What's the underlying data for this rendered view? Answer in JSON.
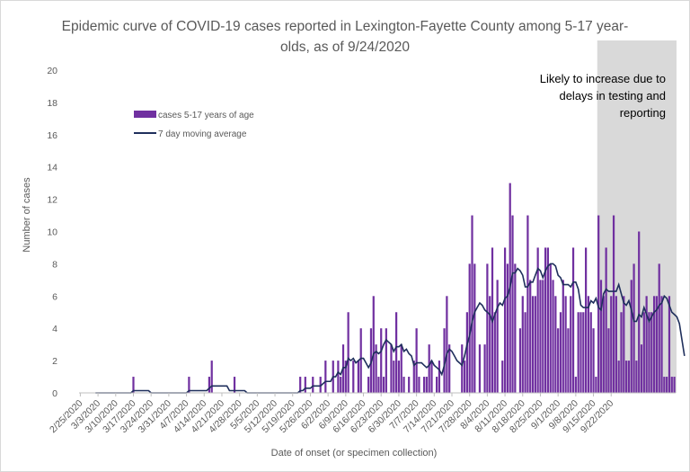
{
  "chart_data": {
    "type": "bar",
    "title": "Epidemic curve of COVID-19 cases reported in Lexington-Fayette County among 5-17 year-\nolds, as of 9/24/2020",
    "xlabel": "Date of onset (or specimen collection)",
    "ylabel": "Number of cases",
    "ylim": [
      0,
      20
    ],
    "yticks": [
      "0",
      "2",
      "4",
      "6",
      "8",
      "10",
      "12",
      "14",
      "16",
      "18",
      "20"
    ],
    "xticks": [
      "2/25/2020",
      "3/3/2020",
      "3/10/2020",
      "3/17/2020",
      "3/24/2020",
      "3/31/2020",
      "4/7/2020",
      "4/14/2020",
      "4/21/2020",
      "4/28/2020",
      "5/5/2020",
      "5/12/2020",
      "5/19/2020",
      "5/26/2020",
      "6/2/2020",
      "6/9/2020",
      "6/16/2020",
      "6/23/2020",
      "6/30/2020",
      "7/7/2020",
      "7/14/2020",
      "7/21/2020",
      "7/28/2020",
      "8/4/2020",
      "8/11/2020",
      "8/18/2020",
      "8/25/2020",
      "9/1/2020",
      "9/8/2020",
      "9/15/2020",
      "9/22/2020"
    ],
    "start_date": "2/25/2020",
    "grid": false,
    "legend_position": "top-left",
    "series": [
      {
        "name": "cases 5-17 years of age",
        "kind": "bar",
        "color": "#7030a0",
        "values": [
          0,
          0,
          0,
          0,
          0,
          0,
          0,
          0,
          0,
          0,
          0,
          0,
          0,
          0,
          0,
          0,
          0,
          0,
          0,
          0,
          0,
          1,
          0,
          0,
          0,
          0,
          0,
          0,
          0,
          0,
          0,
          0,
          0,
          0,
          0,
          0,
          0,
          0,
          0,
          0,
          0,
          0,
          0,
          1,
          0,
          0,
          0,
          0,
          0,
          0,
          0,
          1,
          2,
          0,
          0,
          0,
          0,
          0,
          0,
          0,
          0,
          1,
          0,
          0,
          0,
          0,
          0,
          0,
          0,
          0,
          0,
          0,
          0,
          0,
          0,
          0,
          0,
          0,
          0,
          0,
          0,
          0,
          0,
          0,
          0,
          0,
          0,
          1,
          0,
          1,
          0,
          0,
          1,
          0,
          0,
          1,
          0,
          2,
          0,
          0,
          2,
          0,
          2,
          1,
          3,
          2,
          5,
          0,
          2,
          0,
          2,
          4,
          0,
          0,
          1,
          4,
          6,
          3,
          1,
          4,
          1,
          4,
          0,
          3,
          2,
          5,
          2,
          3,
          1,
          0,
          1,
          0,
          2,
          4,
          1,
          0,
          1,
          1,
          3,
          2,
          0,
          1,
          2,
          0,
          4,
          6,
          3,
          0,
          0,
          0,
          0,
          3,
          2,
          5,
          8,
          11,
          8,
          0,
          3,
          0,
          3,
          8,
          6,
          9,
          5,
          7,
          0,
          2,
          9,
          8,
          13,
          11,
          8,
          0,
          4,
          6,
          5,
          11,
          7,
          6,
          6,
          9,
          7,
          7,
          9,
          9,
          8,
          7,
          6,
          4,
          5,
          7,
          6,
          4,
          6,
          9,
          1,
          5,
          5,
          5,
          9,
          6,
          5,
          4,
          1,
          11,
          7,
          6,
          9,
          4,
          6,
          11,
          6,
          2,
          5,
          6,
          2,
          2,
          7,
          8,
          2,
          10,
          3,
          5,
          6,
          5,
          5,
          6,
          6,
          8,
          6,
          1,
          1,
          6,
          1,
          1
        ]
      },
      {
        "name": "7 day moving average",
        "kind": "line",
        "color": "#1f2f5c",
        "values": [
          null,
          null,
          null,
          null,
          null,
          null,
          0,
          0,
          0,
          0,
          0,
          0,
          0,
          0,
          0,
          0,
          0,
          0,
          0,
          0,
          0,
          0.14,
          0.14,
          0.14,
          0.14,
          0.14,
          0.14,
          0.14,
          0,
          0,
          0,
          0,
          0,
          0,
          0,
          0,
          0,
          0,
          0,
          0,
          0,
          0,
          0,
          0.14,
          0.14,
          0.14,
          0.14,
          0.14,
          0.14,
          0.14,
          0.14,
          0.29,
          0.43,
          0.43,
          0.43,
          0.43,
          0.43,
          0.43,
          0.43,
          0.14,
          0.14,
          0.14,
          0.14,
          0.14,
          0.14,
          0.14,
          0,
          0,
          0,
          0,
          0,
          0,
          0,
          0,
          0,
          0,
          0,
          0,
          0,
          0,
          0,
          0,
          0,
          0,
          0,
          0,
          0,
          0.14,
          0.14,
          0.29,
          0.29,
          0.29,
          0.43,
          0.43,
          0.43,
          0.43,
          0.57,
          0.71,
          0.71,
          0.71,
          1.0,
          1.0,
          1.29,
          1.14,
          1.57,
          1.57,
          2.14,
          2.0,
          2.14,
          1.86,
          2.0,
          2.14,
          2.14,
          1.86,
          1.57,
          1.86,
          2.43,
          2.57,
          2.43,
          2.57,
          3.0,
          3.29,
          3.14,
          3.0,
          2.57,
          2.86,
          2.86,
          3.0,
          2.57,
          2.71,
          2.43,
          2.29,
          1.71,
          1.86,
          1.86,
          1.86,
          1.71,
          1.57,
          1.71,
          2.0,
          1.71,
          1.57,
          1.43,
          1.14,
          1.71,
          2.43,
          2.71,
          2.57,
          2.29,
          2.0,
          1.86,
          1.71,
          2.29,
          3.0,
          3.57,
          4.43,
          5.0,
          5.29,
          5.57,
          5.43,
          5.14,
          5.0,
          4.86,
          4.43,
          4.86,
          5.29,
          5.57,
          5.43,
          5.86,
          6.0,
          6.57,
          7.43,
          7.43,
          7.71,
          7.57,
          7.29,
          6.57,
          6.57,
          6.86,
          6.86,
          7.29,
          7.71,
          7.57,
          7.14,
          7.57,
          7.86,
          8.0,
          8.0,
          7.86,
          7.29,
          7.14,
          6.71,
          6.71,
          6.71,
          6.57,
          6.86,
          6.86,
          6.43,
          5.43,
          5.29,
          5.29,
          5.29,
          5.71,
          5.57,
          5.86,
          5.29,
          5.14,
          6.14,
          6.43,
          6.29,
          6.29,
          6.29,
          6.29,
          6.71,
          6.14,
          5.57,
          5.43,
          5.71,
          5.14,
          4.43,
          4.43,
          4.86,
          4.71,
          5.29,
          4.86,
          4.43,
          4.71,
          5.0,
          5.14,
          5.43,
          5.57,
          6.0,
          5.86,
          5.43,
          5.0,
          4.86,
          4.71,
          4.29,
          3.29,
          2.29
        ]
      }
    ],
    "annotation": {
      "text": "Likely to increase due to\ndelays in testing and\nreporting",
      "shaded_from": "9/22/2020",
      "shade_color": "#d9d9d9"
    }
  }
}
